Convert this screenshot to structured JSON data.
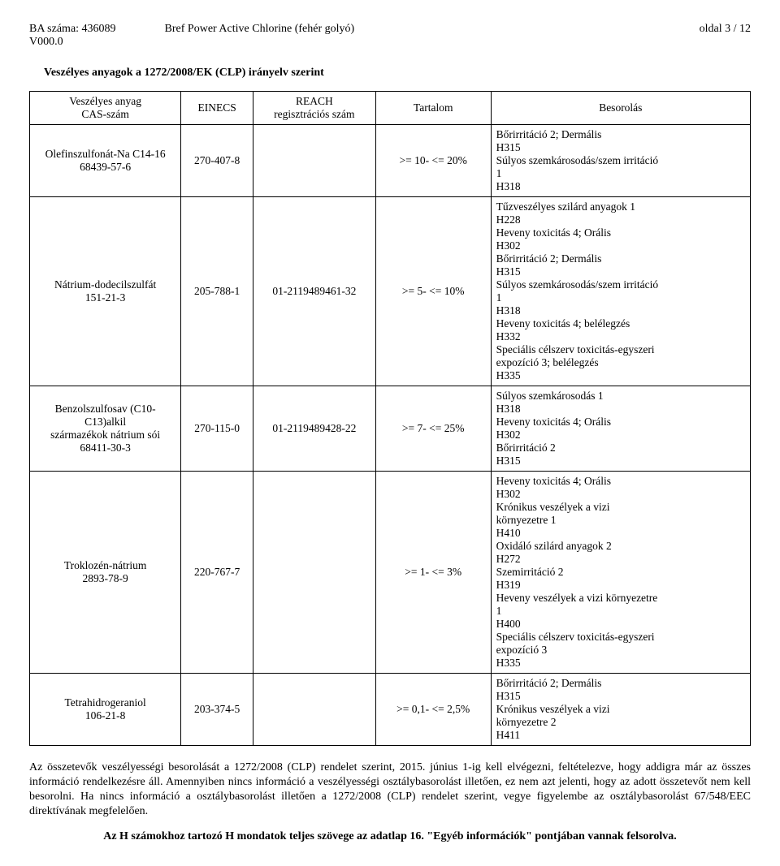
{
  "header": {
    "ba_label": "BA száma: 436089",
    "version": "V000.0",
    "product": "Bref Power Active Chlorine (fehér golyó)",
    "page": "oldal 3 / 12"
  },
  "section_title": "Veszélyes anyagok a 1272/2008/EK (CLP) irányelv szerint",
  "table": {
    "headers": {
      "substance": "Veszélyes anyag\nCAS-szám",
      "einecs": "EINECS",
      "reach": "REACH\nregisztrációs szám",
      "content": "Tartalom",
      "classification": "Besorolás"
    },
    "rows": [
      {
        "substance": "Olefinszulfonát-Na C14-16\n68439-57-6",
        "einecs": "270-407-8",
        "reach": "",
        "content": ">=  10- <=  20%",
        "classification": "Bőrirritáció 2;  Dermális\nH315\nSúlyos szemkárosodás/szem irritáció\n1\nH318"
      },
      {
        "substance": "Nátrium-dodecilszulfát\n151-21-3",
        "einecs": "205-788-1",
        "reach": "01-2119489461-32",
        "content": ">=   5- <=  10%",
        "classification": "Tűzveszélyes szilárd anyagok 1\nH228\nHeveny toxicitás 4;  Orális\nH302\nBőrirritáció 2;  Dermális\nH315\nSúlyos szemkárosodás/szem irritáció\n1\nH318\nHeveny toxicitás 4;  belélegzés\nH332\nSpeciális célszerv toxicitás-egyszeri\nexpozíció 3;  belélegzés\nH335"
      },
      {
        "substance": "Benzolszulfosav (C10-C13)alkil\nszármazékok nátrium sói\n68411-30-3",
        "einecs": "270-115-0",
        "reach": "01-2119489428-22",
        "content": ">=   7- <=  25%",
        "classification": "Súlyos szemkárosodás 1\nH318\nHeveny toxicitás 4;  Orális\nH302\nBőrirritáció 2\nH315"
      },
      {
        "substance": "Troklozén-nátrium\n2893-78-9",
        "einecs": "220-767-7",
        "reach": "",
        "content": ">=   1- <=   3%",
        "classification": "Heveny toxicitás 4;  Orális\nH302\nKrónikus veszélyek a vizi\nkörnyezetre 1\nH410\nOxidáló szilárd anyagok 2\nH272\nSzemirritáció 2\nH319\nHeveny veszélyek a vizi környezetre\n1\nH400\nSpeciális célszerv toxicitás-egyszeri\nexpozíció 3\nH335"
      },
      {
        "substance": "Tetrahidrogeraniol\n106-21-8",
        "einecs": "203-374-5",
        "reach": "",
        "content": ">=   0,1- <=   2,5%",
        "classification": "Bőrirritáció 2;  Dermális\nH315\nKrónikus veszélyek a vizi\nkörnyezetre 2\nH411"
      }
    ]
  },
  "paragraph": "Az összetevők veszélyességi besorolását a 1272/2008 (CLP) rendelet szerint, 2015. június 1-ig kell elvégezni, feltételezve, hogy addigra már az összes információ rendelkezésre áll. Amennyiben nincs információ a veszélyességi osztálybasorolást illetően, ez nem azt jelenti, hogy az adott összetevőt nem kell besorolni. Ha nincs információ a osztálybasorolást illetően a 1272/2008 (CLP) rendelet szerint, vegye figyelembe az osztálybasorolást 67/548/EEC direktívának megfelelően.",
  "final_line": "Az H számokhoz tartozó H mondatok teljes szövege  az adatlap 16. \"Egyéb információk\" pontjában vannak felsorolva."
}
